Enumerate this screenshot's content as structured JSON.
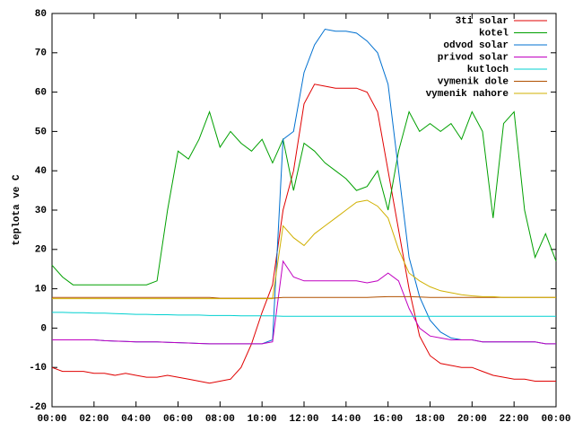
{
  "chart_data": {
    "type": "line",
    "ylabel": "teplota ve C",
    "x": [
      0,
      0.5,
      1,
      1.5,
      2,
      2.5,
      3,
      3.5,
      4,
      4.5,
      5,
      5.5,
      6,
      6.5,
      7,
      7.5,
      8,
      8.5,
      9,
      9.5,
      10,
      10.5,
      11,
      11.5,
      12,
      12.5,
      13,
      13.5,
      14,
      14.5,
      15,
      15.5,
      16,
      16.5,
      17,
      17.5,
      18,
      18.5,
      19,
      19.5,
      20,
      20.5,
      21,
      21.5,
      22,
      22.5,
      23,
      23.5,
      24
    ],
    "xlim": [
      0,
      24
    ],
    "xticks": [
      {
        "value": 0,
        "label": "00:00"
      },
      {
        "value": 2,
        "label": "02:00"
      },
      {
        "value": 4,
        "label": "04:00"
      },
      {
        "value": 6,
        "label": "06:00"
      },
      {
        "value": 8,
        "label": "08:00"
      },
      {
        "value": 10,
        "label": "10:00"
      },
      {
        "value": 12,
        "label": "12:00"
      },
      {
        "value": 14,
        "label": "14:00"
      },
      {
        "value": 16,
        "label": "16:00"
      },
      {
        "value": 18,
        "label": "18:00"
      },
      {
        "value": 20,
        "label": "20:00"
      },
      {
        "value": 22,
        "label": "22:00"
      },
      {
        "value": 24,
        "label": "00:00"
      }
    ],
    "ylim": [
      -20,
      80
    ],
    "yticks": [
      -20,
      -10,
      0,
      10,
      20,
      30,
      40,
      50,
      60,
      70,
      80
    ],
    "legend": "top-right",
    "series": [
      {
        "name": "3ti solar",
        "color": "#e00000",
        "values": [
          -10,
          -11,
          -11,
          -11,
          -11.5,
          -11.5,
          -12,
          -11.5,
          -12,
          -12.5,
          -12.5,
          -12,
          -12.5,
          -13,
          -13.5,
          -14,
          -13.5,
          -13,
          -10,
          -4,
          4,
          11,
          30,
          40,
          57,
          62,
          61.5,
          61,
          61,
          61,
          60,
          55,
          40,
          25,
          10,
          -2,
          -7,
          -9,
          -9.5,
          -10,
          -10,
          -11,
          -12,
          -12.5,
          -13,
          -13,
          -13.5,
          -13.5,
          -13.5
        ]
      },
      {
        "name": "kotel",
        "color": "#00a000",
        "values": [
          16,
          13,
          11,
          11,
          11,
          11,
          11,
          11,
          11,
          11,
          12,
          30,
          45,
          43,
          48,
          55,
          46,
          50,
          47,
          45,
          48,
          42,
          48,
          35,
          47,
          45,
          42,
          40,
          38,
          35,
          36,
          40,
          30,
          45,
          55,
          50,
          52,
          50,
          52,
          48,
          55,
          50,
          28,
          52,
          55,
          30,
          18,
          24,
          17
        ]
      },
      {
        "name": "odvod solar",
        "color": "#0070d0",
        "values": [
          -3,
          -3,
          -3,
          -3,
          -3,
          -3.2,
          -3.3,
          -3.4,
          -3.5,
          -3.5,
          -3.5,
          -3.6,
          -3.7,
          -3.8,
          -3.9,
          -4,
          -4,
          -4,
          -4,
          -4,
          -4,
          -3,
          48,
          50,
          65,
          72,
          76,
          75.5,
          75.5,
          75,
          73,
          70,
          62,
          40,
          18,
          8,
          2,
          -1,
          -2.5,
          -3,
          -3,
          -3.5,
          -3.5,
          -3.5,
          -3.5,
          -3.5,
          -3.5,
          -4,
          -4
        ]
      },
      {
        "name": "privod solar",
        "color": "#c000c0",
        "values": [
          -3,
          -3,
          -3,
          -3,
          -3,
          -3.2,
          -3.3,
          -3.4,
          -3.5,
          -3.5,
          -3.5,
          -3.6,
          -3.7,
          -3.8,
          -3.9,
          -4,
          -4,
          -4,
          -4,
          -4,
          -4,
          -3.5,
          17,
          13,
          12,
          12,
          12,
          12,
          12,
          12,
          11.5,
          12,
          14,
          12,
          5,
          0,
          -2,
          -2.5,
          -3,
          -3,
          -3,
          -3.5,
          -3.5,
          -3.5,
          -3.5,
          -3.5,
          -3.5,
          -4,
          -4
        ]
      },
      {
        "name": "kutloch",
        "color": "#00d0d0",
        "values": [
          4,
          4,
          3.9,
          3.9,
          3.8,
          3.8,
          3.7,
          3.6,
          3.5,
          3.5,
          3.4,
          3.4,
          3.3,
          3.3,
          3.3,
          3.2,
          3.2,
          3.2,
          3.1,
          3.1,
          3.1,
          3.1,
          3,
          3,
          3,
          3,
          3,
          3,
          3,
          3,
          3,
          3,
          3,
          3,
          3,
          3,
          3,
          3,
          3,
          3,
          3,
          3,
          3,
          3,
          3,
          3,
          3,
          3,
          3
        ]
      },
      {
        "name": "vymenik dole",
        "color": "#b05000",
        "values": [
          7.8,
          7.8,
          7.8,
          7.8,
          7.8,
          7.8,
          7.8,
          7.8,
          7.8,
          7.8,
          7.8,
          7.8,
          7.8,
          7.8,
          7.8,
          7.8,
          7.6,
          7.6,
          7.6,
          7.6,
          7.6,
          7.6,
          7.8,
          7.8,
          7.8,
          7.8,
          7.8,
          7.8,
          7.8,
          7.8,
          7.8,
          7.9,
          8,
          8,
          8,
          7.9,
          7.8,
          7.8,
          7.8,
          7.8,
          7.8,
          7.8,
          7.8,
          7.8,
          7.8,
          7.8,
          7.8,
          7.8,
          7.8
        ]
      },
      {
        "name": "vymenik nahore",
        "color": "#d0b000",
        "values": [
          7.5,
          7.5,
          7.5,
          7.5,
          7.5,
          7.5,
          7.5,
          7.5,
          7.5,
          7.5,
          7.5,
          7.5,
          7.5,
          7.5,
          7.5,
          7.5,
          7.5,
          7.5,
          7.5,
          7.5,
          7.5,
          7.5,
          26,
          23,
          21,
          24,
          26,
          28,
          30,
          32,
          32.5,
          31,
          28,
          20,
          14,
          12,
          10.5,
          9.5,
          9,
          8.5,
          8.2,
          8,
          8,
          7.8,
          7.8,
          7.8,
          7.8,
          7.8,
          7.8
        ]
      }
    ]
  }
}
